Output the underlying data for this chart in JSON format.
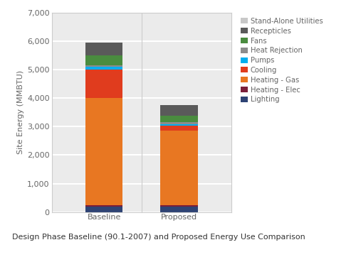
{
  "categories": [
    "Baseline",
    "Proposed"
  ],
  "series": [
    {
      "label": "Lighting",
      "color": "#2e4374",
      "values": [
        200,
        200
      ]
    },
    {
      "label": "Heating - Elec",
      "color": "#7b1f3a",
      "values": [
        50,
        50
      ]
    },
    {
      "label": "Heating - Gas",
      "color": "#e87722",
      "values": [
        3750,
        2600
      ]
    },
    {
      "label": "Cooling",
      "color": "#e03c1e",
      "values": [
        1000,
        180
      ]
    },
    {
      "label": "Pumps",
      "color": "#00aeef",
      "values": [
        100,
        55
      ]
    },
    {
      "label": "Heat Rejection",
      "color": "#8c8c8c",
      "values": [
        50,
        75
      ]
    },
    {
      "label": "Fans",
      "color": "#4a8c3f",
      "values": [
        350,
        215
      ]
    },
    {
      "label": "Recepticles",
      "color": "#5a5a5a",
      "values": [
        460,
        390
      ]
    },
    {
      "label": "Stand-Alone Utilities",
      "color": "#c8c8c8",
      "values": [
        0,
        0
      ]
    }
  ],
  "ylabel": "Site Energy (MMBTU)",
  "ylim": [
    0,
    7000
  ],
  "yticks": [
    0,
    1000,
    2000,
    3000,
    4000,
    5000,
    6000,
    7000
  ],
  "ytick_labels": [
    "0",
    "1,000",
    "2,000",
    "3,000",
    "4,000",
    "5,000",
    "6,000",
    "7,000"
  ],
  "caption": "Design Phase Baseline (90.1-2007) and Proposed Energy Use Comparison",
  "chart_bg": "#ebebeb",
  "outer_bg": "#ffffff",
  "caption_bg": "#d4d4d4",
  "bar_width": 0.5,
  "legend_fontsize": 7.2,
  "axis_fontsize": 8.0,
  "caption_fontsize": 8.0,
  "grid_color": "#ffffff",
  "tick_color": "#666666",
  "border_color": "#cccccc"
}
